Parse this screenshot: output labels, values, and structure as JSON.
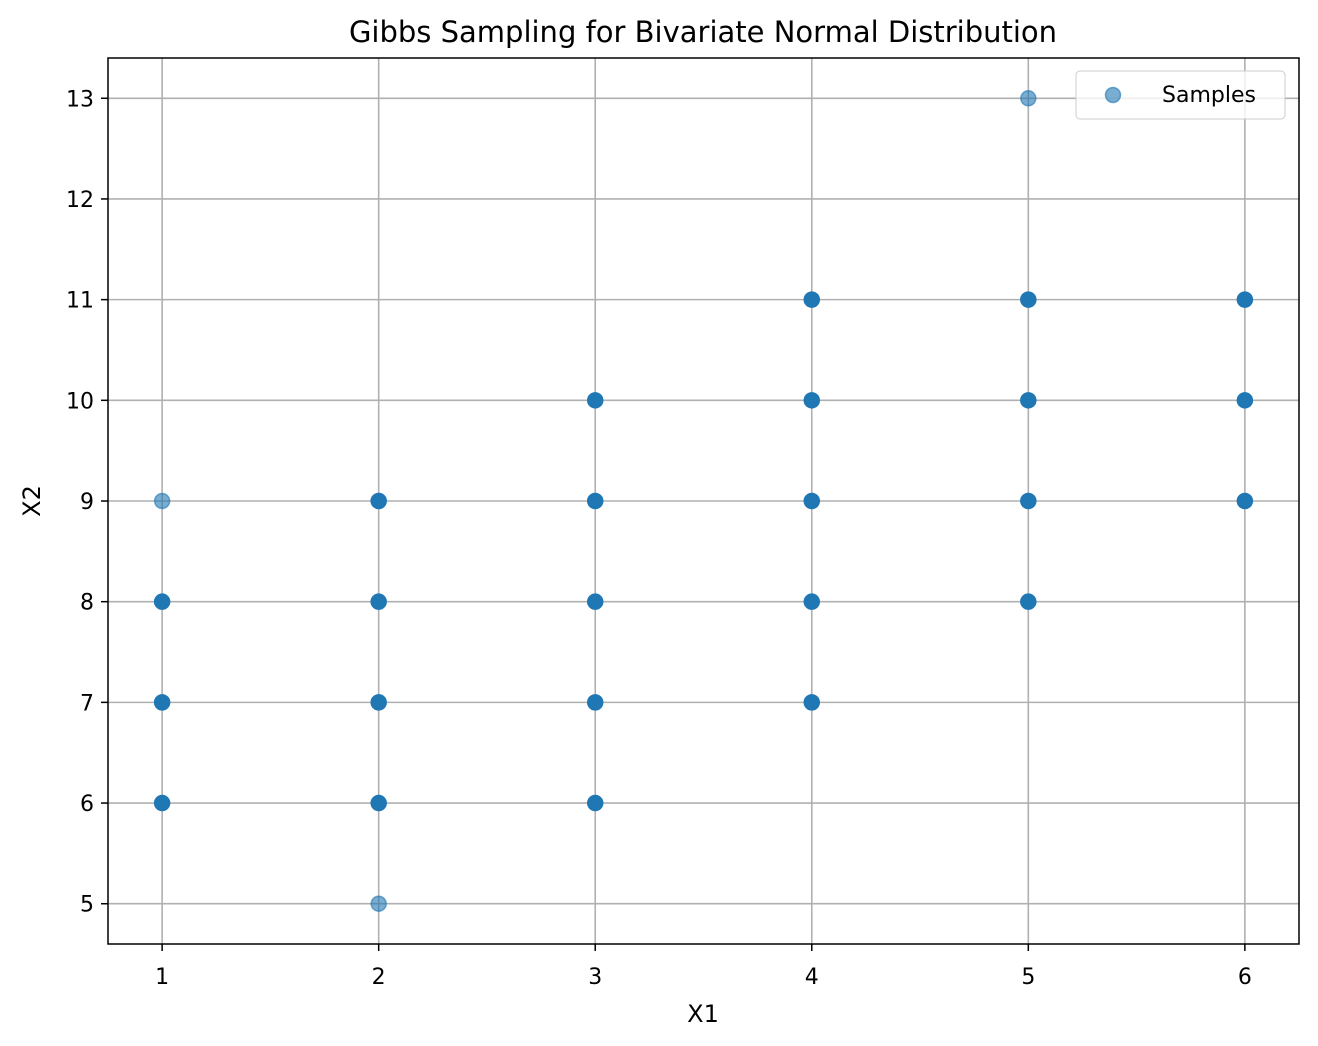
{
  "chart_data": {
    "type": "scatter",
    "title": "Gibbs Sampling for Bivariate Normal Distribution",
    "xlabel": "X1",
    "ylabel": "X2",
    "xlim": [
      0.75,
      6.25
    ],
    "ylim": [
      4.6,
      13.4
    ],
    "xticks": [
      1,
      2,
      3,
      4,
      5,
      6
    ],
    "yticks": [
      5,
      6,
      7,
      8,
      9,
      10,
      11,
      12,
      13
    ],
    "grid": true,
    "legend_position": "top-right",
    "series": [
      {
        "name": "Samples",
        "color": "#1f77b4",
        "points": [
          {
            "x": 1,
            "y": 6,
            "alpha": 1.0
          },
          {
            "x": 1,
            "y": 7,
            "alpha": 1.0
          },
          {
            "x": 1,
            "y": 8,
            "alpha": 1.0
          },
          {
            "x": 1,
            "y": 9,
            "alpha": 0.6
          },
          {
            "x": 2,
            "y": 5,
            "alpha": 0.6
          },
          {
            "x": 2,
            "y": 6,
            "alpha": 1.0
          },
          {
            "x": 2,
            "y": 7,
            "alpha": 1.0
          },
          {
            "x": 2,
            "y": 8,
            "alpha": 1.0
          },
          {
            "x": 2,
            "y": 9,
            "alpha": 1.0
          },
          {
            "x": 3,
            "y": 6,
            "alpha": 1.0
          },
          {
            "x": 3,
            "y": 7,
            "alpha": 1.0
          },
          {
            "x": 3,
            "y": 8,
            "alpha": 1.0
          },
          {
            "x": 3,
            "y": 9,
            "alpha": 1.0
          },
          {
            "x": 3,
            "y": 10,
            "alpha": 1.0
          },
          {
            "x": 4,
            "y": 7,
            "alpha": 1.0
          },
          {
            "x": 4,
            "y": 8,
            "alpha": 1.0
          },
          {
            "x": 4,
            "y": 9,
            "alpha": 1.0
          },
          {
            "x": 4,
            "y": 10,
            "alpha": 1.0
          },
          {
            "x": 4,
            "y": 11,
            "alpha": 1.0
          },
          {
            "x": 5,
            "y": 8,
            "alpha": 1.0
          },
          {
            "x": 5,
            "y": 9,
            "alpha": 1.0
          },
          {
            "x": 5,
            "y": 10,
            "alpha": 1.0
          },
          {
            "x": 5,
            "y": 11,
            "alpha": 1.0
          },
          {
            "x": 5,
            "y": 13,
            "alpha": 0.6
          },
          {
            "x": 6,
            "y": 9,
            "alpha": 1.0
          },
          {
            "x": 6,
            "y": 10,
            "alpha": 1.0
          },
          {
            "x": 6,
            "y": 11,
            "alpha": 1.0
          }
        ]
      }
    ]
  }
}
